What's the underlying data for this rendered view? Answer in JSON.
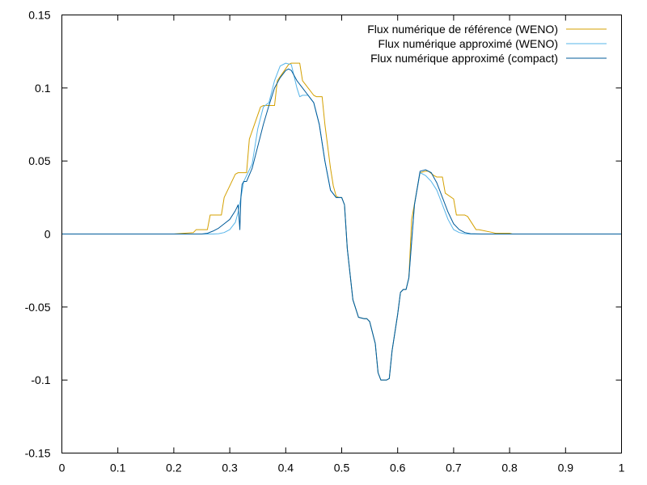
{
  "chart_data": {
    "type": "line",
    "title": "",
    "xlabel": "",
    "ylabel": "",
    "xlim": [
      0,
      1
    ],
    "ylim": [
      -0.15,
      0.15
    ],
    "grid": false,
    "legend_position": "top-right",
    "x_ticks": [
      "0",
      "0.1",
      "0.2",
      "0.3",
      "0.4",
      "0.5",
      "0.6",
      "0.7",
      "0.8",
      "0.9",
      "1"
    ],
    "y_ticks": [
      "0.15",
      "0.1",
      "0.05",
      "0",
      "-0.05",
      "-0.1",
      "-0.15"
    ],
    "series": [
      {
        "name": "Flux numérique de référence (WENO)",
        "color": "#d4a000",
        "x": [
          0,
          0.2,
          0.235,
          0.24,
          0.26,
          0.265,
          0.285,
          0.29,
          0.31,
          0.315,
          0.33,
          0.335,
          0.355,
          0.36,
          0.38,
          0.385,
          0.405,
          0.41,
          0.425,
          0.43,
          0.45,
          0.455,
          0.465,
          0.47,
          0.48,
          0.485,
          0.49,
          0.495,
          0.5,
          0.505,
          0.51,
          0.52,
          0.53,
          0.54,
          0.545,
          0.55,
          0.56,
          0.565,
          0.57,
          0.575,
          0.58,
          0.585,
          0.59,
          0.6,
          0.605,
          0.61,
          0.615,
          0.62,
          0.625,
          0.64,
          0.65,
          0.655,
          0.665,
          0.67,
          0.68,
          0.685,
          0.7,
          0.705,
          0.72,
          0.725,
          0.74,
          0.745,
          0.77,
          0.775,
          0.8,
          0.805,
          1
        ],
        "y": [
          0,
          0,
          0.001,
          0.003,
          0.003,
          0.013,
          0.013,
          0.025,
          0.041,
          0.042,
          0.042,
          0.065,
          0.087,
          0.088,
          0.088,
          0.105,
          0.116,
          0.117,
          0.117,
          0.105,
          0.095,
          0.094,
          0.094,
          0.075,
          0.045,
          0.033,
          0.026,
          0.025,
          0.025,
          0.02,
          -0.01,
          -0.045,
          -0.057,
          -0.058,
          -0.058,
          -0.06,
          -0.075,
          -0.095,
          -0.1,
          -0.1,
          -0.1,
          -0.099,
          -0.08,
          -0.055,
          -0.04,
          -0.038,
          -0.038,
          -0.03,
          0.01,
          0.042,
          0.043,
          0.043,
          0.04,
          0.039,
          0.039,
          0.028,
          0.024,
          0.013,
          0.013,
          0.012,
          0.003,
          0.003,
          0.001,
          0.0005,
          0.0005,
          0,
          0
        ]
      },
      {
        "name": "Flux numérique approximé (WENO)",
        "color": "#56b4e9",
        "x": [
          0,
          0.27,
          0.28,
          0.29,
          0.3,
          0.31,
          0.315,
          0.32,
          0.325,
          0.33,
          0.34,
          0.35,
          0.36,
          0.37,
          0.38,
          0.39,
          0.4,
          0.41,
          0.42,
          0.425,
          0.43,
          0.44,
          0.45,
          0.46,
          0.47,
          0.48,
          0.49,
          0.5,
          0.505,
          0.51,
          0.52,
          0.53,
          0.54,
          0.545,
          0.55,
          0.56,
          0.565,
          0.57,
          0.575,
          0.58,
          0.585,
          0.59,
          0.6,
          0.605,
          0.61,
          0.615,
          0.62,
          0.63,
          0.64,
          0.65,
          0.66,
          0.67,
          0.68,
          0.69,
          0.7,
          0.71,
          0.72,
          0.73,
          0.74,
          0.75,
          1
        ],
        "y": [
          0,
          0,
          0.0002,
          0.001,
          0.003,
          0.008,
          0.015,
          0.025,
          0.036,
          0.04,
          0.048,
          0.072,
          0.087,
          0.09,
          0.105,
          0.115,
          0.117,
          0.116,
          0.1,
          0.094,
          0.095,
          0.095,
          0.09,
          0.075,
          0.05,
          0.03,
          0.025,
          0.025,
          0.02,
          -0.01,
          -0.045,
          -0.057,
          -0.058,
          -0.058,
          -0.06,
          -0.075,
          -0.095,
          -0.1,
          -0.1,
          -0.1,
          -0.099,
          -0.08,
          -0.055,
          -0.04,
          -0.038,
          -0.038,
          -0.03,
          0.02,
          0.042,
          0.04,
          0.036,
          0.03,
          0.02,
          0.01,
          0.003,
          0.001,
          0.0002,
          0,
          0,
          0,
          0
        ]
      },
      {
        "name": "Flux numérique approximé (compact)",
        "color": "#005b9a",
        "x": [
          0,
          0.25,
          0.26,
          0.27,
          0.28,
          0.29,
          0.3,
          0.31,
          0.315,
          0.318,
          0.32,
          0.322,
          0.325,
          0.33,
          0.34,
          0.35,
          0.36,
          0.37,
          0.38,
          0.39,
          0.4,
          0.405,
          0.41,
          0.42,
          0.43,
          0.44,
          0.45,
          0.46,
          0.47,
          0.48,
          0.49,
          0.5,
          0.505,
          0.51,
          0.52,
          0.53,
          0.54,
          0.545,
          0.55,
          0.56,
          0.565,
          0.57,
          0.575,
          0.58,
          0.585,
          0.59,
          0.6,
          0.605,
          0.61,
          0.615,
          0.62,
          0.63,
          0.64,
          0.65,
          0.66,
          0.67,
          0.68,
          0.69,
          0.7,
          0.71,
          0.72,
          0.73,
          0.75,
          1
        ],
        "y": [
          0,
          0,
          0.0005,
          0.002,
          0.004,
          0.007,
          0.01,
          0.016,
          0.02,
          0.003,
          0.026,
          0.034,
          0.036,
          0.036,
          0.045,
          0.06,
          0.075,
          0.088,
          0.1,
          0.107,
          0.112,
          0.113,
          0.112,
          0.105,
          0.1,
          0.095,
          0.09,
          0.075,
          0.05,
          0.03,
          0.025,
          0.025,
          0.02,
          -0.01,
          -0.045,
          -0.057,
          -0.058,
          -0.058,
          -0.06,
          -0.075,
          -0.095,
          -0.1,
          -0.1,
          -0.1,
          -0.099,
          -0.08,
          -0.055,
          -0.04,
          -0.038,
          -0.038,
          -0.03,
          0.02,
          0.043,
          0.044,
          0.042,
          0.035,
          0.025,
          0.015,
          0.007,
          0.003,
          0.001,
          0.0002,
          0,
          0
        ]
      }
    ]
  }
}
